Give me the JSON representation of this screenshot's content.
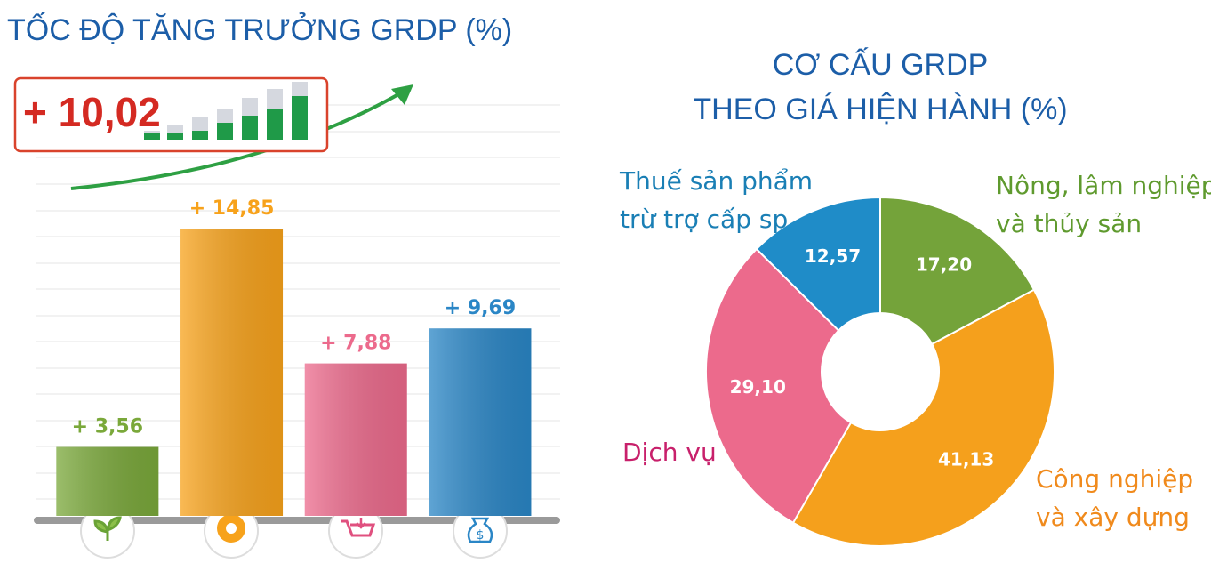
{
  "chart_data": [
    {
      "type": "bar",
      "title": "TỐC ĐỘ TĂNG TRƯỞNG GRDP (%)",
      "headline": "+ 10,02",
      "categories": [
        null,
        null,
        null,
        null
      ],
      "values": [
        3.56,
        14.85,
        7.88,
        9.69
      ],
      "value_labels": [
        "+ 3,56",
        "+ 14,85",
        "+ 7,88",
        "+ 9,69"
      ],
      "colors": [
        "#7aa83a",
        "#f7a21b",
        "#ec6a8c",
        "#2a86c6"
      ],
      "ylim": [
        0,
        20
      ]
    },
    {
      "type": "pie",
      "title": [
        "CƠ CẤU GRDP",
        "THEO GIÁ HIỆN HÀNH (%)"
      ],
      "categories": [
        [
          "Nông, lâm nghiệp",
          "và thủy sản"
        ],
        [
          "Công nghiệp",
          "và xây dựng"
        ],
        [
          "Dịch vụ"
        ],
        [
          "Thuế sản phẩm",
          "trừ trợ cấp sp"
        ]
      ],
      "values": [
        17.2,
        41.13,
        29.1,
        12.57
      ],
      "value_labels": [
        "17,20",
        "41,13",
        "29,10",
        "12,57"
      ],
      "colors": [
        "#74a33a",
        "#f5a01c",
        "#ec6a8c",
        "#1f8cc8"
      ],
      "label_colors": [
        "#5f9a2e",
        "#f08a1c",
        "#c8206b",
        "#1a7fb5"
      ],
      "donut": true
    }
  ]
}
